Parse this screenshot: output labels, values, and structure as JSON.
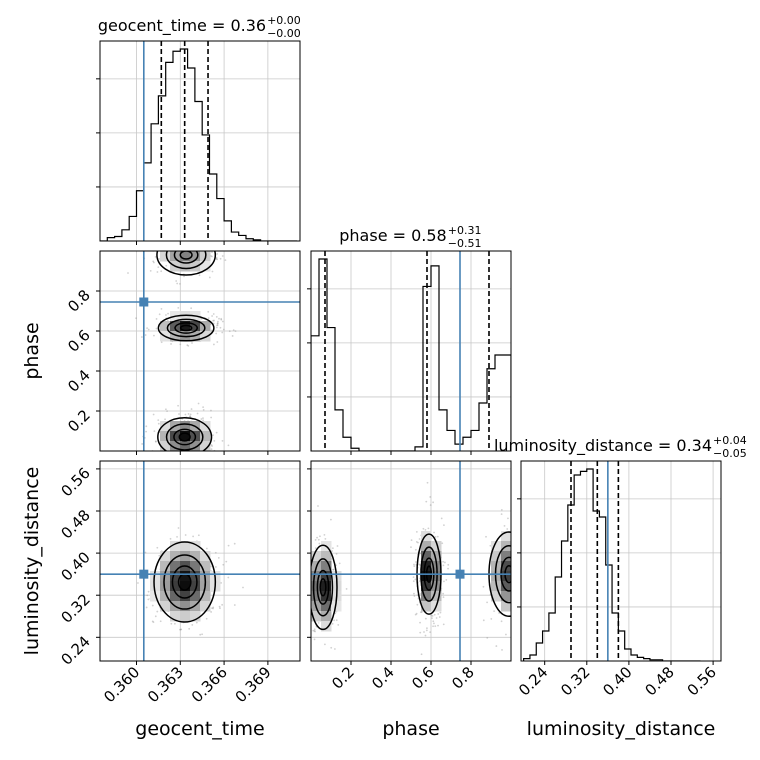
{
  "chart_data": {
    "type": "corner",
    "parameters": [
      "geocent_time",
      "phase",
      "luminosity_distance"
    ],
    "axis_labels": [
      "geocent_time",
      "phase",
      "luminosity_distance"
    ],
    "titles": [
      {
        "name": "geocent_time",
        "median": "0.36",
        "plus": "+0.00",
        "minus": "−0.00"
      },
      {
        "name": "phase",
        "median": "0.58",
        "plus": "+0.31",
        "minus": "−0.51"
      },
      {
        "name": "luminosity_distance",
        "median": "0.34",
        "plus": "+0.04",
        "minus": "−0.05"
      }
    ],
    "ranges": [
      [
        0.3575,
        0.3712
      ],
      [
        0.0,
        1.0
      ],
      [
        0.195,
        0.575
      ]
    ],
    "ticks": [
      {
        "values": [
          0.36,
          0.363,
          0.366,
          0.369
        ],
        "labels": [
          "0.360",
          "0.363",
          "0.366",
          "0.369"
        ]
      },
      {
        "values": [
          0.2,
          0.4,
          0.6,
          0.8
        ],
        "labels": [
          "0.2",
          "0.4",
          "0.6",
          "0.8"
        ]
      },
      {
        "values": [
          0.24,
          0.32,
          0.4,
          0.48,
          0.56
        ],
        "labels": [
          "0.24",
          "0.32",
          "0.40",
          "0.48",
          "0.56"
        ]
      }
    ],
    "truth": [
      0.3605,
      0.745,
      0.36
    ],
    "truth_color": "#4682b4",
    "quantiles": [
      [
        0.3617,
        0.3633,
        0.3649
      ],
      [
        0.07,
        0.58,
        0.89
      ],
      [
        0.29,
        0.34,
        0.38
      ]
    ],
    "grid": true,
    "histograms": [
      {
        "param": "geocent_time",
        "edges": [
          0.3575,
          0.358,
          0.3585,
          0.359,
          0.3595,
          0.36,
          0.3605,
          0.361,
          0.3615,
          0.362,
          0.3625,
          0.363,
          0.3635,
          0.364,
          0.3645,
          0.365,
          0.3655,
          0.366,
          0.3665,
          0.367,
          0.3675,
          0.368,
          0.3685,
          0.369,
          0.3695,
          0.37,
          0.3705,
          0.371
        ],
        "counts": [
          0,
          3,
          4,
          10,
          22,
          45,
          70,
          105,
          130,
          160,
          170,
          172,
          155,
          125,
          95,
          60,
          38,
          18,
          8,
          5,
          2,
          1,
          0,
          0,
          0,
          0,
          0
        ]
      },
      {
        "param": "phase",
        "edges": [
          0.0,
          0.04,
          0.08,
          0.12,
          0.16,
          0.2,
          0.24,
          0.28,
          0.32,
          0.36,
          0.4,
          0.44,
          0.48,
          0.52,
          0.56,
          0.6,
          0.64,
          0.68,
          0.72,
          0.76,
          0.8,
          0.84,
          0.88,
          0.92,
          0.96,
          1.0
        ],
        "counts": [
          84,
          140,
          90,
          30,
          10,
          2,
          0,
          0,
          0,
          0,
          0,
          0,
          0,
          3,
          120,
          135,
          30,
          15,
          5,
          10,
          15,
          35,
          60,
          70,
          70
        ]
      },
      {
        "param": "luminosity_distance",
        "edges": [
          0.2,
          0.212,
          0.224,
          0.236,
          0.248,
          0.26,
          0.272,
          0.284,
          0.296,
          0.308,
          0.32,
          0.332,
          0.344,
          0.356,
          0.368,
          0.38,
          0.392,
          0.404,
          0.416,
          0.428,
          0.44,
          0.452,
          0.464,
          0.476,
          0.488,
          0.5,
          0.512,
          0.524,
          0.536
        ],
        "counts": [
          2,
          5,
          15,
          25,
          40,
          70,
          100,
          130,
          155,
          158,
          160,
          125,
          120,
          80,
          40,
          25,
          10,
          5,
          3,
          2,
          1,
          1,
          0,
          0,
          0,
          0,
          0,
          0
        ]
      }
    ],
    "density_2d": [
      {
        "x": "geocent_time",
        "y": "phase",
        "blobs": [
          {
            "cx": 0.3633,
            "cy": 0.07,
            "sx": 0.00092,
            "sy": 0.048,
            "w": 1.0
          },
          {
            "cx": 0.3634,
            "cy": 0.615,
            "sx": 0.00095,
            "sy": 0.032,
            "w": 1.0
          },
          {
            "cx": 0.3634,
            "cy": 0.98,
            "sx": 0.001,
            "sy": 0.05,
            "w": 0.55
          }
        ]
      },
      {
        "x": "geocent_time",
        "y": "luminosity_distance",
        "blobs": [
          {
            "cx": 0.3633,
            "cy": 0.345,
            "sx": 0.00105,
            "sy": 0.038,
            "w": 1.0
          }
        ]
      },
      {
        "x": "phase",
        "y": "luminosity_distance",
        "blobs": [
          {
            "cx": 0.06,
            "cy": 0.335,
            "sx": 0.035,
            "sy": 0.04,
            "w": 0.9
          },
          {
            "cx": 0.59,
            "cy": 0.36,
            "sx": 0.03,
            "sy": 0.038,
            "w": 1.0
          },
          {
            "cx": 0.99,
            "cy": 0.36,
            "sx": 0.05,
            "sy": 0.04,
            "w": 0.75
          }
        ]
      }
    ]
  }
}
